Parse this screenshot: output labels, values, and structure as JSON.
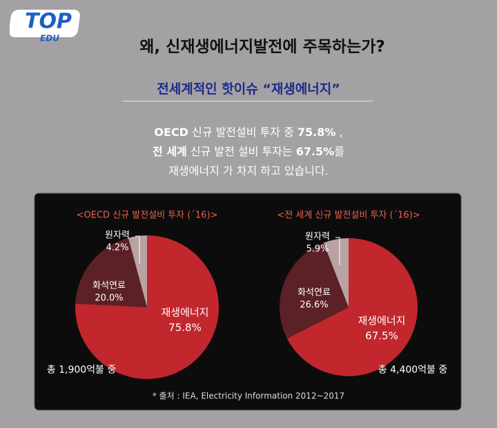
{
  "logo": {
    "main": "TOP",
    "sub": "EDU"
  },
  "title": "왜, 신재생에너지발전에 주목하는가?",
  "subtitle": "전세계적인 핫이슈 “재생에너지”",
  "body": [
    [
      {
        "text": "OECD",
        "bold": true
      },
      {
        "text": " 신규 발전설비 투자 중 ",
        "bold": false
      },
      {
        "text": "75.8%",
        "bold": true
      },
      {
        "text": " ,",
        "bold": false
      }
    ],
    [
      {
        "text": "전 세계",
        "bold": true
      },
      {
        "text": " 신규 발전 설비 투자는 ",
        "bold": false
      },
      {
        "text": "67.5%",
        "bold": true
      },
      {
        "text": "를",
        "bold": false
      }
    ],
    [
      {
        "text": "재생에너지 가 차지 하고 있습니다.",
        "bold": false
      }
    ]
  ],
  "chart_data": [
    {
      "type": "pie",
      "title": "<OECD 신규 발전설비 투자 (´16)>",
      "categories": [
        "재생에너지",
        "화석연료",
        "원자력"
      ],
      "values": [
        75.8,
        20,
        4.2
      ],
      "value_labels": [
        "75.8%",
        "20.0%",
        "4.2%"
      ],
      "colors": [
        "#c1272d",
        "#5b2126",
        "#b8a2a4"
      ],
      "note": "총 1,900억불 중"
    },
    {
      "type": "pie",
      "title": "<전 세계 신규 발전설비 투자 (´16)>",
      "categories": [
        "재생에너지",
        "화석연료",
        "원자력"
      ],
      "values": [
        67.5,
        26.6,
        5.9
      ],
      "value_labels": [
        "67.5%",
        "26.6%",
        "5.9%"
      ],
      "colors": [
        "#c1272d",
        "#5b2126",
        "#b8a2a4"
      ],
      "note": "총 4,400억불 중"
    }
  ],
  "source": "* 출처 : IEA, Electricity Information 2012~2017"
}
